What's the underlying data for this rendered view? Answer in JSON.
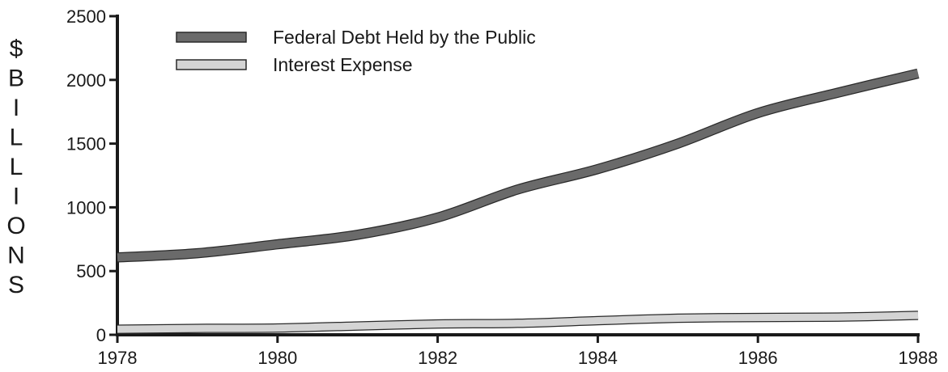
{
  "chart_data": {
    "type": "line",
    "title": "",
    "xlabel": "",
    "ylabel": "$ BILLIONS",
    "ylabel_letters": [
      "$",
      "B",
      "I",
      "L",
      "L",
      "I",
      "O",
      "N",
      "S"
    ],
    "x": [
      1978,
      1979,
      1980,
      1981,
      1982,
      1983,
      1984,
      1985,
      1986,
      1987,
      1988
    ],
    "x_ticks": [
      "1978",
      "1980",
      "1982",
      "1984",
      "1986",
      "1988"
    ],
    "x_tick_values": [
      1978,
      1980,
      1982,
      1984,
      1986,
      1988
    ],
    "y_ticks": [
      "0",
      "500",
      "1000",
      "1500",
      "2000",
      "2500"
    ],
    "y_tick_values": [
      0,
      500,
      1000,
      1500,
      2000,
      2500
    ],
    "xlim": [
      1978,
      1988
    ],
    "ylim": [
      0,
      2500
    ],
    "grid": false,
    "legend_position": "top-left",
    "series": [
      {
        "name": "Federal Debt Held by the Public",
        "color": "#6a6a6a",
        "values": [
          607,
          640,
          710,
          785,
          920,
          1140,
          1300,
          1500,
          1740,
          1900,
          2050
        ]
      },
      {
        "name": "Interest Expense",
        "color": "#d4d4d4",
        "values": [
          44,
          50,
          53,
          69,
          85,
          90,
          111,
          130,
          136,
          139,
          152
        ]
      }
    ]
  }
}
